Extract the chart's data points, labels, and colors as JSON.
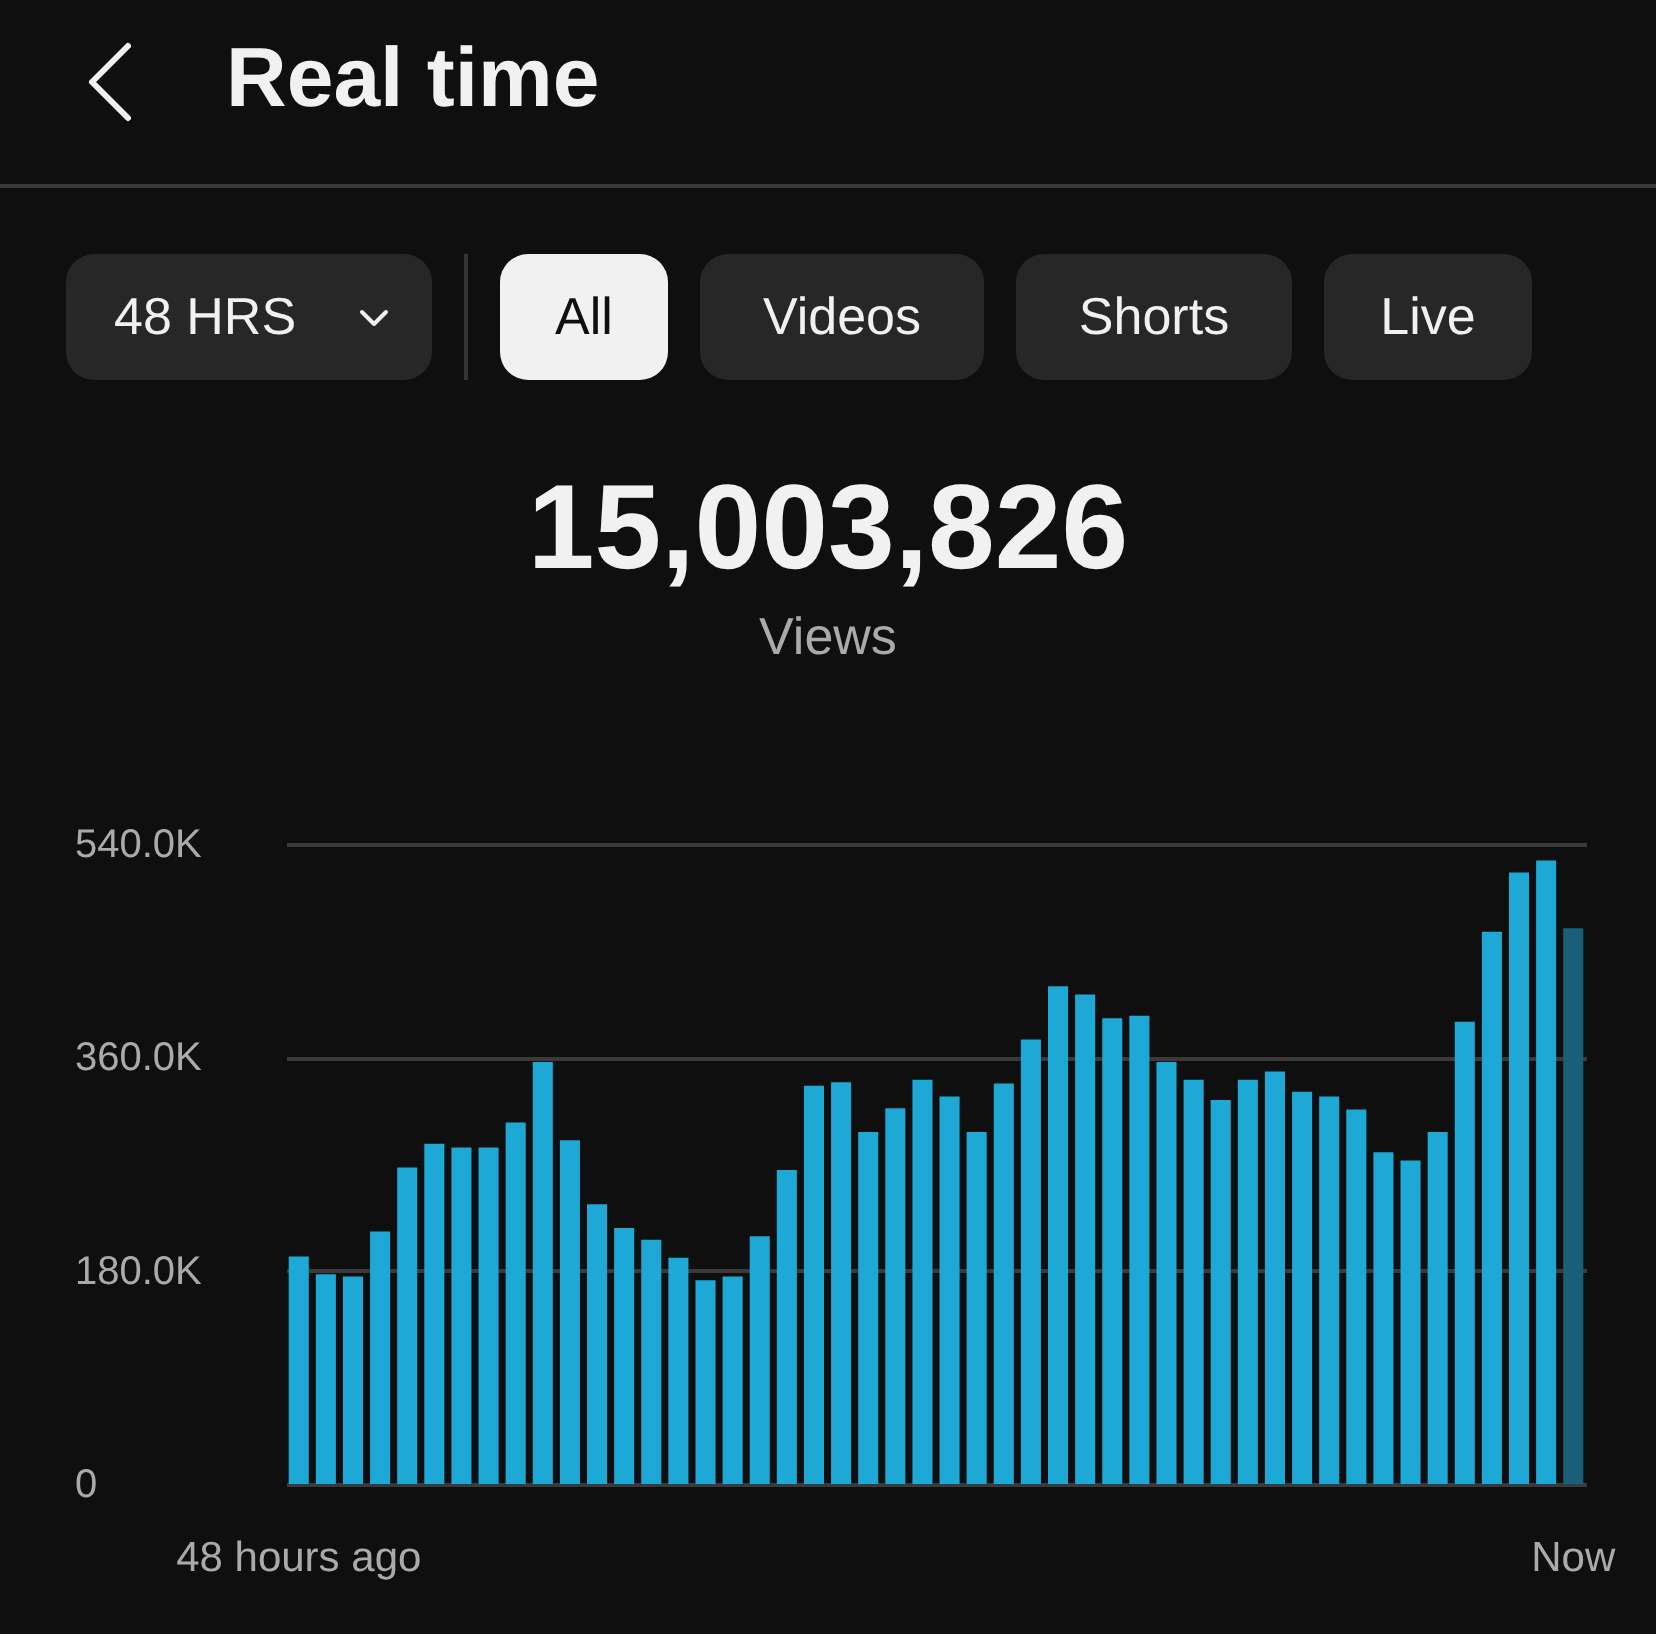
{
  "chart_data": {
    "type": "bar",
    "title": "Real time",
    "annotations": [
      "48 HRS",
      "All",
      "Videos",
      "Shorts",
      "Live",
      "15,003,826",
      "Views"
    ],
    "categories": [
      "48 hours ago",
      null,
      null,
      null,
      null,
      null,
      null,
      null,
      null,
      null,
      null,
      null,
      null,
      null,
      null,
      null,
      null,
      null,
      null,
      null,
      null,
      null,
      null,
      null,
      null,
      null,
      null,
      null,
      null,
      null,
      null,
      null,
      null,
      null,
      null,
      null,
      null,
      null,
      null,
      null,
      null,
      null,
      null,
      null,
      null,
      null,
      null,
      "Now"
    ],
    "values": [
      192000,
      177000,
      175000,
      213000,
      267000,
      287000,
      284000,
      284000,
      305000,
      356000,
      290000,
      236000,
      216000,
      206000,
      191000,
      172000,
      175000,
      209000,
      265000,
      336000,
      339000,
      297000,
      317000,
      341000,
      327000,
      297000,
      338000,
      375000,
      420000,
      413000,
      393000,
      395000,
      356000,
      341000,
      324000,
      341000,
      348000,
      331000,
      327000,
      316000,
      280000,
      273000,
      297000,
      390000,
      466000,
      516000,
      526000,
      469000
    ],
    "colors": [
      "#1ea8d6",
      "#1ea8d6",
      "#1ea8d6",
      "#1ea8d6",
      "#1ea8d6",
      "#1ea8d6",
      "#1ea8d6",
      "#1ea8d6",
      "#1ea8d6",
      "#1ea8d6",
      "#1ea8d6",
      "#1ea8d6",
      "#1ea8d6",
      "#1ea8d6",
      "#1ea8d6",
      "#1ea8d6",
      "#1ea8d6",
      "#1ea8d6",
      "#1ea8d6",
      "#1ea8d6",
      "#1ea8d6",
      "#1ea8d6",
      "#1ea8d6",
      "#1ea8d6",
      "#1ea8d6",
      "#1ea8d6",
      "#1ea8d6",
      "#1ea8d6",
      "#1ea8d6",
      "#1ea8d6",
      "#1ea8d6",
      "#1ea8d6",
      "#1ea8d6",
      "#1ea8d6",
      "#1ea8d6",
      "#1ea8d6",
      "#1ea8d6",
      "#1ea8d6",
      "#1ea8d6",
      "#1ea8d6",
      "#1ea8d6",
      "#1ea8d6",
      "#1ea8d6",
      "#1ea8d6",
      "#1ea8d6",
      "#1ea8d6",
      "#1ea8d6",
      "#1a5f78"
    ],
    "ylim": [
      0,
      540000
    ],
    "yticks": [
      {
        "value": 0,
        "label": "0"
      },
      {
        "value": 180000,
        "label": "180.0K"
      },
      {
        "value": 360000,
        "label": "360.0K"
      },
      {
        "value": 540000,
        "label": "540.0K"
      }
    ],
    "grid": "y"
  }
}
